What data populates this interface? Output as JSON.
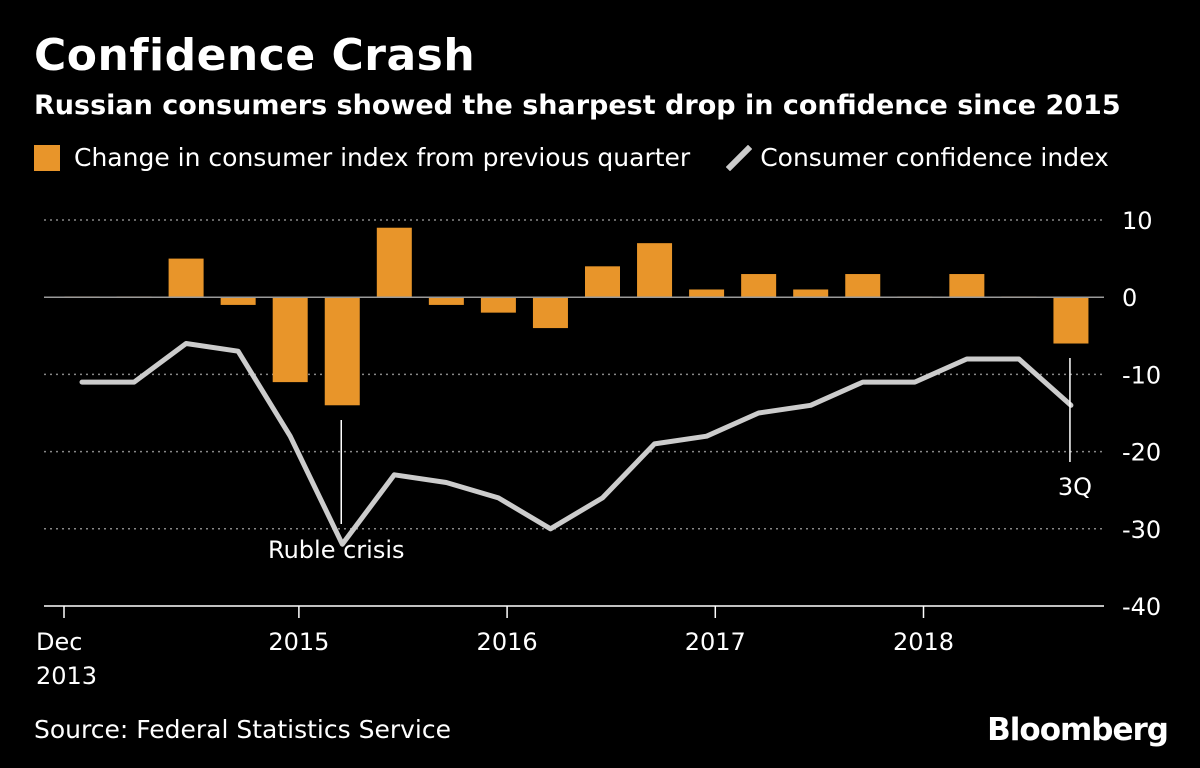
{
  "title": "Confidence Crash",
  "subtitle": "Russian consumers showed the sharpest drop in confidence since 2015",
  "source": "Source: Federal Statistics Service",
  "brand": "Bloomberg",
  "colors": {
    "bar": "#e8952a",
    "line": "#cccccc",
    "background": "#000000",
    "grid": "#888888"
  },
  "chart_data": {
    "type": "bar+line",
    "legend": [
      {
        "name": "Change in consumer index from previous quarter",
        "kind": "bar"
      },
      {
        "name": "Consumer confidence index",
        "kind": "line"
      }
    ],
    "x": [
      "4Q 2013",
      "1Q 2014",
      "2Q 2014",
      "3Q 2014",
      "4Q 2014",
      "1Q 2015",
      "2Q 2015",
      "3Q 2015",
      "4Q 2015",
      "1Q 2016",
      "2Q 2016",
      "3Q 2016",
      "4Q 2016",
      "1Q 2017",
      "2Q 2017",
      "3Q 2017",
      "4Q 2017",
      "1Q 2018",
      "2Q 2018",
      "3Q 2018"
    ],
    "series": [
      {
        "name": "Change in consumer index from previous quarter",
        "type": "bar",
        "values": [
          0,
          0,
          5,
          -1,
          -11,
          -14,
          9,
          -1,
          -2,
          -4,
          4,
          7,
          1,
          3,
          1,
          3,
          0,
          3,
          0,
          -6
        ]
      },
      {
        "name": "Consumer confidence index",
        "type": "line",
        "values": [
          -11,
          -11,
          -6,
          -7,
          -18,
          -32,
          -23,
          -24,
          -26,
          -30,
          -26,
          -19,
          -18,
          -15,
          -14,
          -11,
          -11,
          -8,
          -8,
          -14
        ]
      }
    ],
    "ylim": [
      -40,
      10
    ],
    "yticks": [
      "10",
      "0",
      "-10",
      "-20",
      "-30",
      "-40"
    ],
    "ytick_values": [
      10,
      0,
      -10,
      -20,
      -30,
      -40
    ],
    "xticks": [
      {
        "label": "Dec",
        "label2": "2013",
        "index": 0
      },
      {
        "label": "2015",
        "label2": "",
        "index": 4.167
      },
      {
        "label": "2016",
        "label2": "",
        "index": 8.167
      },
      {
        "label": "2017",
        "label2": "",
        "index": 12.167
      },
      {
        "label": "2018",
        "label2": "",
        "index": 16.167
      }
    ],
    "annotations": [
      {
        "text": "Ruble crisis",
        "index": 5
      },
      {
        "text": "3Q",
        "index": 19
      }
    ]
  }
}
